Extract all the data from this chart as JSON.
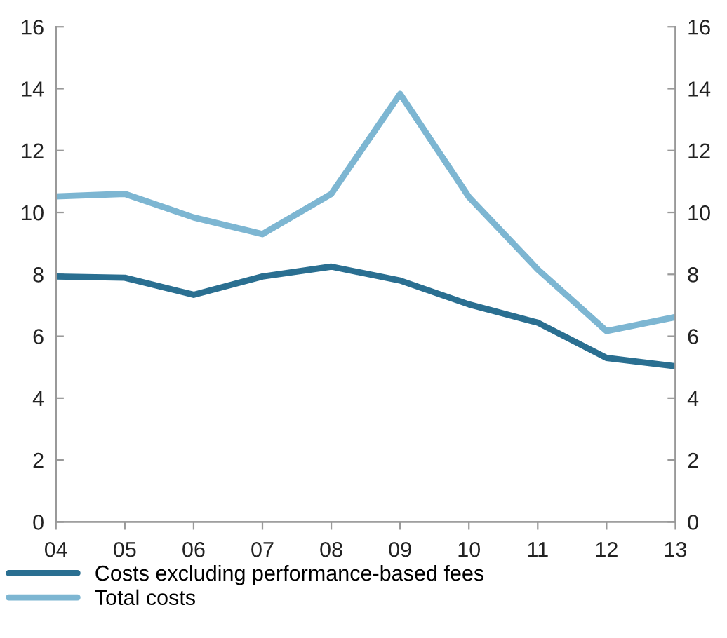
{
  "chart_data": {
    "type": "line",
    "categories": [
      "04",
      "05",
      "06",
      "07",
      "08",
      "09",
      "10",
      "11",
      "12",
      "13"
    ],
    "series": [
      {
        "name": "Costs excluding performance-based fees",
        "color": "#2a6f91",
        "values": [
          7.93,
          7.89,
          7.34,
          7.93,
          8.25,
          7.8,
          7.03,
          6.44,
          5.3,
          5.03
        ]
      },
      {
        "name": "Total costs",
        "color": "#7db6d2",
        "values": [
          10.52,
          10.6,
          9.84,
          9.3,
          10.6,
          13.83,
          10.5,
          8.16,
          6.17,
          6.62
        ]
      }
    ],
    "ylim": [
      0,
      16
    ],
    "yticks": [
      0,
      2,
      4,
      6,
      8,
      10,
      12,
      14,
      16
    ],
    "y2lim": [
      0,
      16
    ],
    "y2ticks": [
      0,
      2,
      4,
      6,
      8,
      10,
      12,
      14,
      16
    ],
    "grid": false,
    "legend": "bottom",
    "marker": "none",
    "line_style": "solid"
  }
}
